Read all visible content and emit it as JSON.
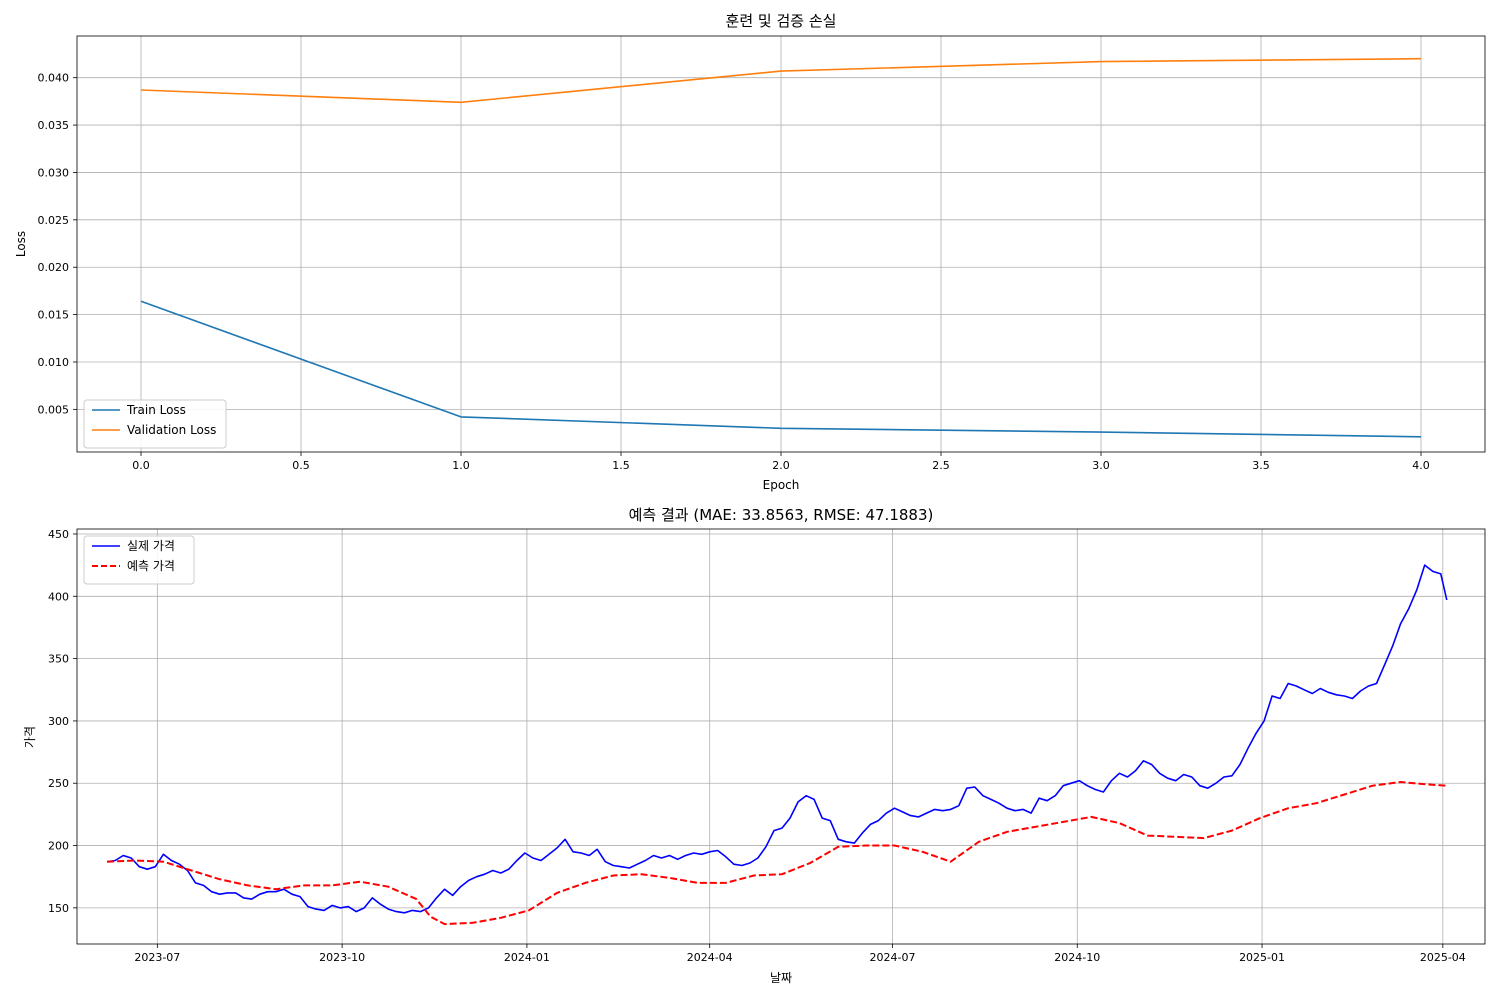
{
  "chart_data": [
    {
      "type": "line",
      "title": "훈련 및 검증 손실",
      "xlabel": "Epoch",
      "ylabel": "Loss",
      "xlim": [
        -0.2,
        4.2
      ],
      "ylim": [
        0.0005,
        0.0444
      ],
      "xticks": [
        "0.0",
        "0.5",
        "1.0",
        "1.5",
        "2.0",
        "2.5",
        "3.0",
        "3.5",
        "4.0"
      ],
      "yticks": [
        "0.005",
        "0.010",
        "0.015",
        "0.020",
        "0.025",
        "0.030",
        "0.035",
        "0.040"
      ],
      "grid": true,
      "legend_position": "lower-left",
      "x": [
        0,
        1,
        2,
        3,
        4
      ],
      "series": [
        {
          "name": "Train Loss",
          "color": "#1f77b4",
          "values": [
            0.0164,
            0.0042,
            0.003,
            0.0026,
            0.0021
          ]
        },
        {
          "name": "Validation Loss",
          "color": "#ff7f0e",
          "values": [
            0.0387,
            0.0374,
            0.0407,
            0.0417,
            0.042
          ]
        }
      ]
    },
    {
      "type": "line",
      "title": "예측 결과 (MAE: 33.8563, RMSE: 47.1883)",
      "xlabel": "날짜",
      "ylabel": "가격",
      "xlim": [
        "2023-05-22",
        "2025-04-22"
      ],
      "ylim": [
        121,
        454
      ],
      "xticks": [
        "2023-07",
        "2023-10",
        "2024-01",
        "2024-04",
        "2024-07",
        "2024-10",
        "2025-01",
        "2025-04"
      ],
      "yticks": [
        "150",
        "200",
        "250",
        "300",
        "350",
        "400",
        "450"
      ],
      "grid": true,
      "legend_position": "top-left",
      "series": [
        {
          "name": "실제 가격",
          "color": "#0000ff",
          "style": "solid",
          "points": [
            [
              "2023-06-06",
              187
            ],
            [
              "2023-06-10",
              188
            ],
            [
              "2023-06-14",
              192
            ],
            [
              "2023-06-18",
              190
            ],
            [
              "2023-06-22",
              183
            ],
            [
              "2023-06-26",
              181
            ],
            [
              "2023-06-30",
              183
            ],
            [
              "2023-07-04",
              193
            ],
            [
              "2023-07-08",
              188
            ],
            [
              "2023-07-12",
              185
            ],
            [
              "2023-07-16",
              180
            ],
            [
              "2023-07-20",
              170
            ],
            [
              "2023-07-24",
              168
            ],
            [
              "2023-07-28",
              163
            ],
            [
              "2023-08-01",
              161
            ],
            [
              "2023-08-05",
              162
            ],
            [
              "2023-08-09",
              162
            ],
            [
              "2023-08-13",
              158
            ],
            [
              "2023-08-17",
              157
            ],
            [
              "2023-08-21",
              161
            ],
            [
              "2023-08-25",
              163
            ],
            [
              "2023-08-29",
              163
            ],
            [
              "2023-09-02",
              165
            ],
            [
              "2023-09-06",
              161
            ],
            [
              "2023-09-10",
              159
            ],
            [
              "2023-09-14",
              151
            ],
            [
              "2023-09-18",
              149
            ],
            [
              "2023-09-22",
              148
            ],
            [
              "2023-09-26",
              152
            ],
            [
              "2023-09-30",
              150
            ],
            [
              "2023-10-04",
              151
            ],
            [
              "2023-10-08",
              147
            ],
            [
              "2023-10-12",
              150
            ],
            [
              "2023-10-16",
              158
            ],
            [
              "2023-10-20",
              153
            ],
            [
              "2023-10-24",
              149
            ],
            [
              "2023-10-28",
              147
            ],
            [
              "2023-11-01",
              146
            ],
            [
              "2023-11-05",
              148
            ],
            [
              "2023-11-09",
              147
            ],
            [
              "2023-11-13",
              150
            ],
            [
              "2023-11-17",
              158
            ],
            [
              "2023-11-21",
              165
            ],
            [
              "2023-11-25",
              160
            ],
            [
              "2023-11-29",
              167
            ],
            [
              "2023-12-03",
              172
            ],
            [
              "2023-12-07",
              175
            ],
            [
              "2023-12-11",
              177
            ],
            [
              "2023-12-15",
              180
            ],
            [
              "2023-12-19",
              178
            ],
            [
              "2023-12-23",
              181
            ],
            [
              "2023-12-27",
              188
            ],
            [
              "2023-12-31",
              194
            ],
            [
              "2024-01-04",
              190
            ],
            [
              "2024-01-08",
              188
            ],
            [
              "2024-01-12",
              193
            ],
            [
              "2024-01-16",
              198
            ],
            [
              "2024-01-20",
              205
            ],
            [
              "2024-01-24",
              195
            ],
            [
              "2024-01-28",
              194
            ],
            [
              "2024-02-01",
              192
            ],
            [
              "2024-02-05",
              197
            ],
            [
              "2024-02-09",
              187
            ],
            [
              "2024-02-13",
              184
            ],
            [
              "2024-02-17",
              183
            ],
            [
              "2024-02-21",
              182
            ],
            [
              "2024-02-25",
              185
            ],
            [
              "2024-02-29",
              188
            ],
            [
              "2024-03-04",
              192
            ],
            [
              "2024-03-08",
              190
            ],
            [
              "2024-03-12",
              192
            ],
            [
              "2024-03-16",
              189
            ],
            [
              "2024-03-20",
              192
            ],
            [
              "2024-03-24",
              194
            ],
            [
              "2024-03-28",
              193
            ],
            [
              "2024-04-01",
              195
            ],
            [
              "2024-04-05",
              196
            ],
            [
              "2024-04-09",
              191
            ],
            [
              "2024-04-13",
              185
            ],
            [
              "2024-04-17",
              184
            ],
            [
              "2024-04-21",
              186
            ],
            [
              "2024-04-25",
              190
            ],
            [
              "2024-04-29",
              199
            ],
            [
              "2024-05-03",
              212
            ],
            [
              "2024-05-07",
              214
            ],
            [
              "2024-05-11",
              222
            ],
            [
              "2024-05-15",
              235
            ],
            [
              "2024-05-19",
              240
            ],
            [
              "2024-05-23",
              237
            ],
            [
              "2024-05-27",
              222
            ],
            [
              "2024-05-31",
              220
            ],
            [
              "2024-06-04",
              205
            ],
            [
              "2024-06-08",
              203
            ],
            [
              "2024-06-12",
              202
            ],
            [
              "2024-06-16",
              210
            ],
            [
              "2024-06-20",
              217
            ],
            [
              "2024-06-24",
              220
            ],
            [
              "2024-06-28",
              226
            ],
            [
              "2024-07-02",
              230
            ],
            [
              "2024-07-06",
              227
            ],
            [
              "2024-07-10",
              224
            ],
            [
              "2024-07-14",
              223
            ],
            [
              "2024-07-18",
              226
            ],
            [
              "2024-07-22",
              229
            ],
            [
              "2024-07-26",
              228
            ],
            [
              "2024-07-30",
              229
            ],
            [
              "2024-08-03",
              232
            ],
            [
              "2024-08-07",
              246
            ],
            [
              "2024-08-11",
              247
            ],
            [
              "2024-08-15",
              240
            ],
            [
              "2024-08-19",
              237
            ],
            [
              "2024-08-23",
              234
            ],
            [
              "2024-08-27",
              230
            ],
            [
              "2024-08-31",
              228
            ],
            [
              "2024-09-04",
              229
            ],
            [
              "2024-09-08",
              226
            ],
            [
              "2024-09-12",
              238
            ],
            [
              "2024-09-16",
              236
            ],
            [
              "2024-09-20",
              240
            ],
            [
              "2024-09-24",
              248
            ],
            [
              "2024-09-28",
              250
            ],
            [
              "2024-10-02",
              252
            ],
            [
              "2024-10-06",
              248
            ],
            [
              "2024-10-10",
              245
            ],
            [
              "2024-10-14",
              243
            ],
            [
              "2024-10-18",
              252
            ],
            [
              "2024-10-22",
              258
            ],
            [
              "2024-10-26",
              255
            ],
            [
              "2024-10-30",
              260
            ],
            [
              "2024-11-03",
              268
            ],
            [
              "2024-11-07",
              265
            ],
            [
              "2024-11-11",
              258
            ],
            [
              "2024-11-15",
              254
            ],
            [
              "2024-11-19",
              252
            ],
            [
              "2024-11-23",
              257
            ],
            [
              "2024-11-27",
              255
            ],
            [
              "2024-12-01",
              248
            ],
            [
              "2024-12-05",
              246
            ],
            [
              "2024-12-09",
              250
            ],
            [
              "2024-12-13",
              255
            ],
            [
              "2024-12-17",
              256
            ],
            [
              "2024-12-21",
              265
            ],
            [
              "2024-12-25",
              278
            ],
            [
              "2024-12-29",
              290
            ],
            [
              "2025-01-02",
              300
            ],
            [
              "2025-01-06",
              320
            ],
            [
              "2025-01-10",
              318
            ],
            [
              "2025-01-14",
              330
            ],
            [
              "2025-01-18",
              328
            ],
            [
              "2025-01-22",
              325
            ],
            [
              "2025-01-26",
              322
            ],
            [
              "2025-01-30",
              326
            ],
            [
              "2025-02-03",
              323
            ],
            [
              "2025-02-07",
              321
            ],
            [
              "2025-02-11",
              320
            ],
            [
              "2025-02-15",
              318
            ],
            [
              "2025-02-19",
              324
            ],
            [
              "2025-02-23",
              328
            ],
            [
              "2025-02-27",
              330
            ],
            [
              "2025-03-03",
              345
            ],
            [
              "2025-03-07",
              360
            ],
            [
              "2025-03-11",
              378
            ],
            [
              "2025-03-15",
              390
            ],
            [
              "2025-03-19",
              405
            ],
            [
              "2025-03-23",
              425
            ],
            [
              "2025-03-27",
              420
            ],
            [
              "2025-03-31",
              418
            ],
            [
              "2025-04-03",
              397
            ]
          ]
        },
        {
          "name": "예측 가격",
          "color": "#ff0000",
          "style": "dashed",
          "points": [
            [
              "2023-06-06",
              187
            ],
            [
              "2023-06-20",
              188
            ],
            [
              "2023-07-04",
              187
            ],
            [
              "2023-07-18",
              180
            ],
            [
              "2023-08-01",
              173
            ],
            [
              "2023-08-15",
              168
            ],
            [
              "2023-08-29",
              165
            ],
            [
              "2023-09-12",
              168
            ],
            [
              "2023-09-26",
              168
            ],
            [
              "2023-10-10",
              171
            ],
            [
              "2023-10-24",
              167
            ],
            [
              "2023-11-07",
              157
            ],
            [
              "2023-11-14",
              143
            ],
            [
              "2023-11-21",
              137
            ],
            [
              "2023-12-05",
              138
            ],
            [
              "2023-12-19",
              142
            ],
            [
              "2024-01-02",
              148
            ],
            [
              "2024-01-16",
              162
            ],
            [
              "2024-01-30",
              170
            ],
            [
              "2024-02-13",
              176
            ],
            [
              "2024-02-27",
              177
            ],
            [
              "2024-03-12",
              174
            ],
            [
              "2024-03-26",
              170
            ],
            [
              "2024-04-09",
              170
            ],
            [
              "2024-04-23",
              176
            ],
            [
              "2024-05-07",
              177
            ],
            [
              "2024-05-21",
              186
            ],
            [
              "2024-06-04",
              199
            ],
            [
              "2024-06-18",
              200
            ],
            [
              "2024-07-02",
              200
            ],
            [
              "2024-07-16",
              195
            ],
            [
              "2024-07-30",
              187
            ],
            [
              "2024-08-13",
              203
            ],
            [
              "2024-08-27",
              211
            ],
            [
              "2024-09-10",
              215
            ],
            [
              "2024-09-24",
              219
            ],
            [
              "2024-10-08",
              223
            ],
            [
              "2024-10-22",
              218
            ],
            [
              "2024-11-05",
              208
            ],
            [
              "2024-11-19",
              207
            ],
            [
              "2024-12-03",
              206
            ],
            [
              "2024-12-17",
              212
            ],
            [
              "2024-12-31",
              222
            ],
            [
              "2025-01-14",
              230
            ],
            [
              "2025-01-28",
              234
            ],
            [
              "2025-02-11",
              241
            ],
            [
              "2025-02-25",
              248
            ],
            [
              "2025-03-11",
              251
            ],
            [
              "2025-03-25",
              249
            ],
            [
              "2025-04-03",
              248
            ]
          ]
        }
      ]
    }
  ]
}
